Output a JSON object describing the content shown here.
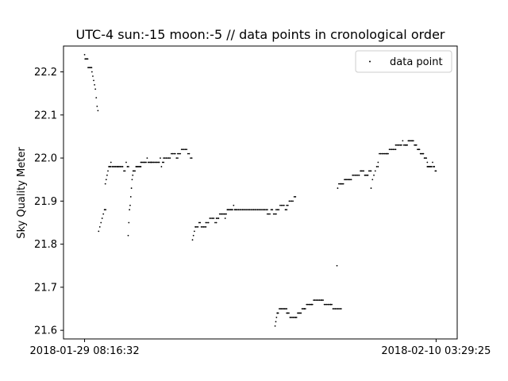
{
  "chart_data": {
    "type": "scatter",
    "title": "UTC-4 sun:-15 moon:-5 // data points in cronological order",
    "xlabel": "",
    "ylabel": "Sky Quality Meter",
    "x_ticks": [
      {
        "x": 0,
        "label": "2018-01-29 08:16:32"
      },
      {
        "x": 1,
        "label": "2018-02-10 03:29:25"
      }
    ],
    "x_note": "x is normalized time (0 = first tick, 1 = last tick)",
    "xlim": [
      -0.06,
      1.06
    ],
    "ylim": [
      21.58,
      22.26
    ],
    "y_ticks": [
      21.6,
      21.7,
      21.8,
      21.9,
      22.0,
      22.1,
      22.2
    ],
    "legend": {
      "position": "top-right",
      "entries": [
        "data point"
      ]
    },
    "grid": false,
    "series": [
      {
        "name": "data point",
        "color": "#000000",
        "segments": [
          {
            "x": [
              0.0,
              0.009
            ],
            "pts": [
              [
                22.24,
                1
              ],
              [
                22.23,
                5
              ],
              [
                22.23,
                1
              ]
            ]
          },
          {
            "x": [
              0.01,
              0.02
            ],
            "pts": [
              [
                22.21,
                4
              ],
              [
                22.21,
                1
              ]
            ]
          },
          {
            "x": [
              0.021,
              0.038
            ],
            "pts": [
              [
                22.2,
                1
              ],
              [
                22.19,
                1
              ],
              [
                22.18,
                1
              ],
              [
                22.17,
                1
              ],
              [
                22.16,
                1
              ],
              [
                22.14,
                1
              ],
              [
                22.12,
                1
              ],
              [
                22.11,
                1
              ]
            ]
          },
          {
            "x": [
              0.04,
              0.06
            ],
            "pts": [
              [
                21.83,
                1
              ],
              [
                21.84,
                1
              ],
              [
                21.85,
                1
              ],
              [
                21.86,
                1
              ],
              [
                21.87,
                1
              ],
              [
                21.88,
                2
              ]
            ]
          },
          {
            "x": [
              0.059,
              0.074
            ],
            "pts": [
              [
                21.94,
                1
              ],
              [
                21.95,
                1
              ],
              [
                21.96,
                1
              ],
              [
                21.97,
                1
              ],
              [
                21.98,
                3
              ]
            ]
          },
          {
            "x": [
              0.075,
              0.095
            ],
            "pts": [
              [
                21.99,
                1
              ],
              [
                21.98,
                6
              ]
            ]
          },
          {
            "x": [
              0.095,
              0.125
            ],
            "pts": [
              [
                21.98,
                5
              ],
              [
                21.97,
                2
              ],
              [
                21.99,
                1
              ],
              [
                21.98,
                2
              ]
            ]
          },
          {
            "x": [
              0.124,
              0.137
            ],
            "pts": [
              [
                21.82,
                1
              ],
              [
                21.85,
                1
              ],
              [
                21.88,
                1
              ],
              [
                21.89,
                1
              ],
              [
                21.91,
                1
              ],
              [
                21.93,
                1
              ],
              [
                21.95,
                1
              ],
              [
                21.96,
                1
              ]
            ]
          },
          {
            "x": [
              0.138,
              0.16
            ],
            "pts": [
              [
                21.97,
                3
              ],
              [
                21.98,
                6
              ]
            ]
          },
          {
            "x": [
              0.16,
              0.19
            ],
            "pts": [
              [
                21.99,
                6
              ],
              [
                22.0,
                1
              ],
              [
                21.99,
                4
              ]
            ]
          },
          {
            "x": [
              0.19,
              0.225
            ],
            "pts": [
              [
                21.99,
                8
              ],
              [
                22.0,
                1
              ],
              [
                21.98,
                1
              ],
              [
                21.99,
                2
              ]
            ]
          },
          {
            "x": [
              0.225,
              0.265
            ],
            "pts": [
              [
                22.0,
                6
              ],
              [
                22.01,
                4
              ],
              [
                22.0,
                2
              ]
            ]
          },
          {
            "x": [
              0.265,
              0.305
            ],
            "pts": [
              [
                22.01,
                3
              ],
              [
                22.02,
                5
              ],
              [
                22.01,
                2
              ],
              [
                22.0,
                2
              ]
            ]
          },
          {
            "x": [
              0.307,
              0.315
            ],
            "pts": [
              [
                21.81,
                1
              ],
              [
                21.82,
                1
              ],
              [
                21.83,
                1
              ],
              [
                21.84,
                1
              ]
            ]
          },
          {
            "x": [
              0.316,
              0.345
            ],
            "pts": [
              [
                21.84,
                3
              ],
              [
                21.85,
                2
              ],
              [
                21.84,
                5
              ]
            ]
          },
          {
            "x": [
              0.345,
              0.375
            ],
            "pts": [
              [
                21.85,
                3
              ],
              [
                21.86,
                4
              ],
              [
                21.85,
                2
              ]
            ]
          },
          {
            "x": [
              0.375,
              0.4
            ],
            "pts": [
              [
                21.86,
                3
              ],
              [
                21.87,
                5
              ],
              [
                21.86,
                1
              ]
            ]
          },
          {
            "x": [
              0.4,
              0.43
            ],
            "pts": [
              [
                21.87,
                2
              ],
              [
                21.88,
                6
              ],
              [
                21.89,
                1
              ],
              [
                21.88,
                2
              ]
            ]
          },
          {
            "x": [
              0.43,
              0.52
            ],
            "pts": [
              [
                21.88,
                24
              ]
            ]
          },
          {
            "x": [
              0.52,
              0.545
            ],
            "pts": [
              [
                21.87,
                3
              ],
              [
                21.88,
                2
              ],
              [
                21.87,
                3
              ]
            ]
          },
          {
            "x": [
              0.545,
              0.575
            ],
            "pts": [
              [
                21.88,
                3
              ],
              [
                21.89,
                4
              ],
              [
                21.88,
                2
              ]
            ]
          },
          {
            "x": [
              0.575,
              0.6
            ],
            "pts": [
              [
                21.89,
                2
              ],
              [
                21.9,
                4
              ],
              [
                21.91,
                2
              ]
            ]
          },
          {
            "x": [
              0.542,
              0.548
            ],
            "pts": [
              [
                21.61,
                1
              ],
              [
                21.62,
                1
              ],
              [
                21.63,
                1
              ],
              [
                21.64,
                1
              ]
            ]
          },
          {
            "x": [
              0.548,
              0.575
            ],
            "pts": [
              [
                21.64,
                2
              ],
              [
                21.65,
                8
              ]
            ]
          },
          {
            "x": [
              0.575,
              0.6
            ],
            "pts": [
              [
                21.64,
                3
              ],
              [
                21.63,
                6
              ]
            ]
          },
          {
            "x": [
              0.6,
              0.625
            ],
            "pts": [
              [
                21.63,
                2
              ],
              [
                21.64,
                4
              ],
              [
                21.65,
                3
              ]
            ]
          },
          {
            "x": [
              0.625,
              0.645
            ],
            "pts": [
              [
                21.65,
                2
              ],
              [
                21.66,
                5
              ]
            ]
          },
          {
            "x": [
              0.645,
              0.675
            ],
            "pts": [
              [
                21.66,
                2
              ],
              [
                21.67,
                8
              ]
            ]
          },
          {
            "x": [
              0.675,
              0.7
            ],
            "pts": [
              [
                21.67,
                2
              ],
              [
                21.66,
                6
              ]
            ]
          },
          {
            "x": [
              0.7,
              0.73
            ],
            "pts": [
              [
                21.66,
                2
              ],
              [
                21.65,
                8
              ]
            ]
          },
          {
            "x": [
              0.718,
              0.718
            ],
            "pts": [
              [
                21.75,
                1
              ]
            ]
          },
          {
            "x": [
              0.72,
              0.73
            ],
            "pts": [
              [
                21.93,
                1
              ],
              [
                21.94,
                3
              ]
            ]
          },
          {
            "x": [
              0.73,
              0.755
            ],
            "pts": [
              [
                21.94,
                3
              ],
              [
                21.95,
                6
              ]
            ]
          },
          {
            "x": [
              0.755,
              0.785
            ],
            "pts": [
              [
                21.95,
                2
              ],
              [
                21.96,
                6
              ],
              [
                21.97,
                1
              ]
            ]
          },
          {
            "x": [
              0.785,
              0.815
            ],
            "pts": [
              [
                21.97,
                4
              ],
              [
                21.96,
                4
              ],
              [
                21.97,
                3
              ]
            ]
          },
          {
            "x": [
              0.815,
              0.835
            ],
            "pts": [
              [
                21.93,
                1
              ],
              [
                21.95,
                1
              ],
              [
                21.96,
                1
              ],
              [
                21.97,
                1
              ],
              [
                21.98,
                2
              ]
            ]
          },
          {
            "x": [
              0.835,
              0.86
            ],
            "pts": [
              [
                21.99,
                1
              ],
              [
                22.01,
                7
              ]
            ]
          },
          {
            "x": [
              0.86,
              0.885
            ],
            "pts": [
              [
                22.01,
                2
              ],
              [
                22.02,
                6
              ]
            ]
          },
          {
            "x": [
              0.885,
              0.915
            ],
            "pts": [
              [
                22.03,
                6
              ],
              [
                22.04,
                1
              ],
              [
                22.03,
                3
              ]
            ]
          },
          {
            "x": [
              0.915,
              0.95
            ],
            "pts": [
              [
                22.03,
                2
              ],
              [
                22.04,
                6
              ],
              [
                22.03,
                3
              ],
              [
                22.02,
                2
              ]
            ]
          },
          {
            "x": [
              0.95,
              0.975
            ],
            "pts": [
              [
                22.02,
                2
              ],
              [
                22.01,
                4
              ],
              [
                22.0,
                3
              ],
              [
                21.99,
                1
              ]
            ]
          },
          {
            "x": [
              0.975,
              1.0
            ],
            "pts": [
              [
                21.98,
                6
              ],
              [
                21.99,
                1
              ],
              [
                21.98,
                2
              ],
              [
                21.97,
                2
              ]
            ]
          }
        ]
      }
    ]
  }
}
